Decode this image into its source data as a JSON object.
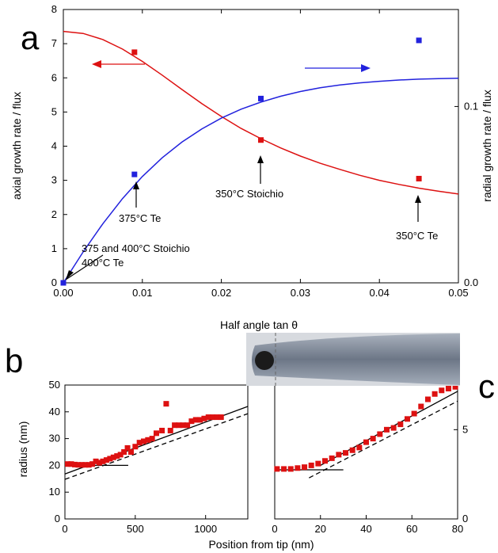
{
  "chart_data": [
    {
      "panel": "a",
      "type": "line+scatter",
      "xlabel": "Half angle tan θ",
      "ylabel_left": "axial growth rate / flux",
      "ylabel_right": "radial growth rate / flux",
      "xlim": [
        0,
        0.05
      ],
      "ylim_left": [
        0,
        8
      ],
      "ylim_right": [
        0,
        0.155
      ],
      "x_ticks": [
        "0.00",
        "0.01",
        "0.02",
        "0.03",
        "0.04",
        "0.05"
      ],
      "y_ticks_left": [
        "0",
        "1",
        "2",
        "3",
        "4",
        "5",
        "6",
        "7",
        "8"
      ],
      "y_ticks_right": [
        "0.0",
        "0.1"
      ],
      "series": [
        {
          "axis": "left",
          "color": "#dd1111",
          "kind": "curve",
          "x": [
            0,
            0.0025,
            0.005,
            0.0075,
            0.01,
            0.0125,
            0.015,
            0.0175,
            0.02,
            0.0225,
            0.025,
            0.0275,
            0.03,
            0.0325,
            0.035,
            0.0375,
            0.04,
            0.0425,
            0.045,
            0.0475,
            0.05
          ],
          "y": [
            7.36,
            7.3,
            7.12,
            6.84,
            6.48,
            6.08,
            5.66,
            5.25,
            4.87,
            4.52,
            4.22,
            3.95,
            3.71,
            3.5,
            3.32,
            3.15,
            3.0,
            2.88,
            2.77,
            2.68,
            2.6
          ]
        },
        {
          "axis": "left",
          "color": "#dd1111",
          "kind": "points",
          "x": [
            0,
            0.009,
            0.025,
            0.045
          ],
          "y": [
            0,
            6.75,
            4.18,
            3.05
          ]
        },
        {
          "axis": "right",
          "color": "#2222dd",
          "kind": "curve",
          "x": [
            0,
            0.0025,
            0.005,
            0.0075,
            0.01,
            0.0125,
            0.015,
            0.0175,
            0.02,
            0.0225,
            0.025,
            0.0275,
            0.03,
            0.0325,
            0.035,
            0.0375,
            0.04,
            0.0425,
            0.045,
            0.0475,
            0.05
          ],
          "y": [
            0,
            0.0175,
            0.0335,
            0.0478,
            0.0603,
            0.0709,
            0.0798,
            0.0872,
            0.0934,
            0.0985,
            0.1025,
            0.1058,
            0.1085,
            0.1106,
            0.1122,
            0.1134,
            0.1143,
            0.115,
            0.1155,
            0.1158,
            0.116
          ]
        },
        {
          "axis": "right",
          "color": "#2222dd",
          "kind": "points",
          "x": [
            0,
            0.009,
            0.025,
            0.045
          ],
          "y": [
            0,
            0.0615,
            0.1045,
            0.1375
          ]
        }
      ],
      "annotations": [
        "375 and 400°C Stoichio",
        "400°C Te",
        "375°C Te",
        "350°C Stoichio",
        "350°C Te"
      ]
    },
    {
      "panel": "b",
      "type": "scatter",
      "xlabel": "Position from tip (nm)",
      "ylabel": "radius (nm)",
      "xlim": [
        0,
        1300
      ],
      "ylim": [
        0,
        50
      ],
      "x_ticks": [
        "0",
        "500",
        "1000"
      ],
      "y_ticks": [
        "0",
        "10",
        "20",
        "30",
        "40",
        "50"
      ],
      "points": {
        "color": "#dd1111",
        "x": [
          20,
          45,
          70,
          95,
          120,
          145,
          170,
          195,
          220,
          245,
          270,
          295,
          320,
          345,
          370,
          395,
          420,
          445,
          470,
          500,
          530,
          560,
          590,
          620,
          650,
          690,
          720,
          750,
          780,
          810,
          840,
          870,
          900,
          930,
          960,
          990,
          1020,
          1050,
          1080,
          1110
        ],
        "y": [
          20.5,
          20.5,
          20.3,
          20.2,
          20.2,
          20.2,
          20.2,
          20.5,
          21.5,
          21,
          21.5,
          22,
          22.5,
          23,
          23.5,
          24,
          25,
          26.5,
          25,
          27,
          28.5,
          29,
          29.5,
          30,
          32,
          33,
          43,
          33,
          35,
          35,
          35,
          35,
          36.5,
          37,
          37,
          37.5,
          38,
          38,
          38,
          38
        ]
      },
      "lines": [
        {
          "style": "solid",
          "x": [
            0,
            1300
          ],
          "y": [
            16.8,
            42
          ]
        },
        {
          "style": "dashed",
          "x": [
            0,
            1300
          ],
          "y": [
            14.8,
            39.3
          ]
        },
        {
          "style": "solid",
          "x": [
            0,
            450
          ],
          "y": [
            20,
            20
          ]
        }
      ]
    },
    {
      "panel": "c",
      "type": "scatter",
      "xlabel": "Position from tip (nm)",
      "ylim_right": [
        0,
        7.5
      ],
      "xlim": [
        0,
        80
      ],
      "x_ticks": [
        "0",
        "20",
        "40",
        "60",
        "80"
      ],
      "y_ticks_right": [
        "0",
        "5"
      ],
      "points": {
        "color": "#dd1111",
        "x": [
          1,
          4,
          7,
          10,
          13,
          16,
          19,
          22,
          25,
          28,
          31,
          34,
          37,
          40,
          43,
          46,
          49,
          52,
          55,
          58,
          61,
          64,
          67,
          70,
          73,
          76,
          79
        ],
        "y": [
          2.8,
          2.8,
          2.8,
          2.85,
          2.9,
          3.0,
          3.1,
          3.25,
          3.4,
          3.6,
          3.7,
          3.85,
          4.0,
          4.3,
          4.5,
          4.75,
          5.0,
          5.1,
          5.3,
          5.6,
          5.9,
          6.3,
          6.7,
          7.0,
          7.2,
          7.3,
          7.4
        ]
      },
      "lines": [
        {
          "style": "solid",
          "x": [
            0,
            30
          ],
          "y": [
            2.75,
            2.75
          ]
        },
        {
          "style": "solid",
          "x": [
            20,
            80
          ],
          "y": [
            3.0,
            7.15
          ]
        },
        {
          "style": "dashed",
          "x": [
            15,
            80
          ],
          "y": [
            2.3,
            6.6
          ]
        }
      ]
    }
  ],
  "panel_labels": {
    "a": "a",
    "b": "b",
    "c": "c"
  }
}
